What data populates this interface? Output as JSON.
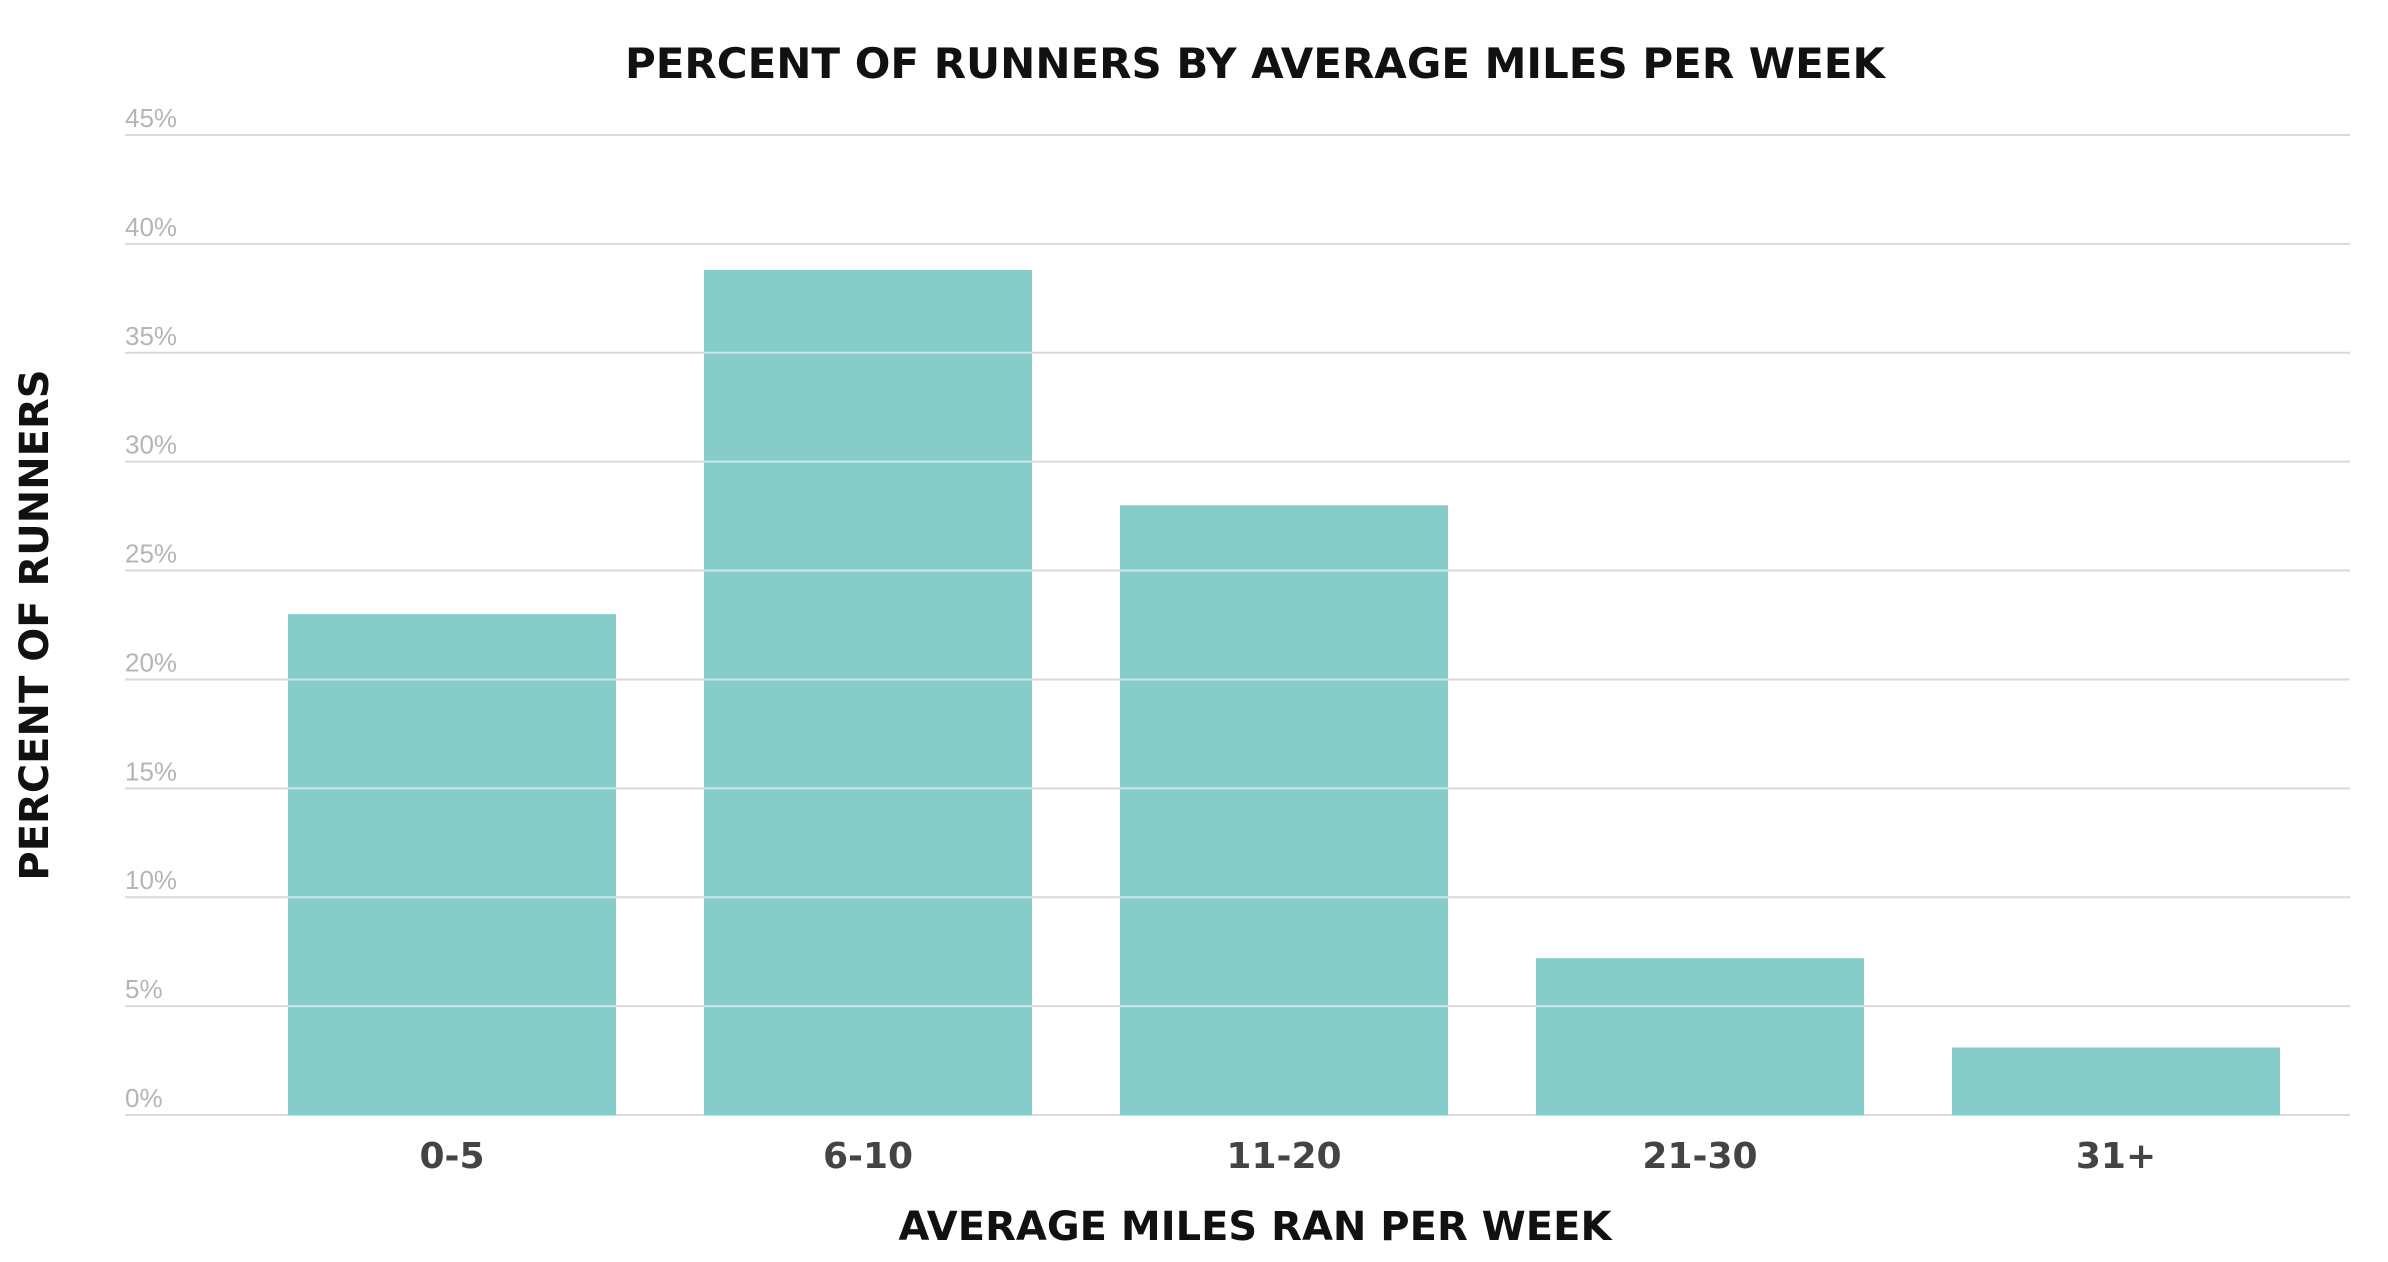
{
  "chart_data": {
    "type": "bar",
    "title": "PERCENT OF RUNNERS BY AVERAGE MILES PER WEEK",
    "xlabel": "AVERAGE MILES RAN PER WEEK",
    "ylabel": "PERCENT OF RUNNERS",
    "categories": [
      "0-5",
      "6-10",
      "11-20",
      "21-30",
      "31+"
    ],
    "values": [
      23,
      38.8,
      28,
      7.2,
      3.1
    ],
    "ylim": [
      0,
      45
    ],
    "yticks": [
      {
        "value": 0,
        "label": "0%"
      },
      {
        "value": 5,
        "label": "5%"
      },
      {
        "value": 10,
        "label": "10%"
      },
      {
        "value": 15,
        "label": "15%"
      },
      {
        "value": 20,
        "label": "20%"
      },
      {
        "value": 25,
        "label": "25%"
      },
      {
        "value": 30,
        "label": "30%"
      },
      {
        "value": 35,
        "label": "35%"
      },
      {
        "value": 40,
        "label": "40%"
      },
      {
        "value": 45,
        "label": "45%"
      }
    ],
    "grid": true,
    "legend": "none",
    "bar_color": "#86cdc9",
    "grid_color": "#d9d9d9"
  }
}
